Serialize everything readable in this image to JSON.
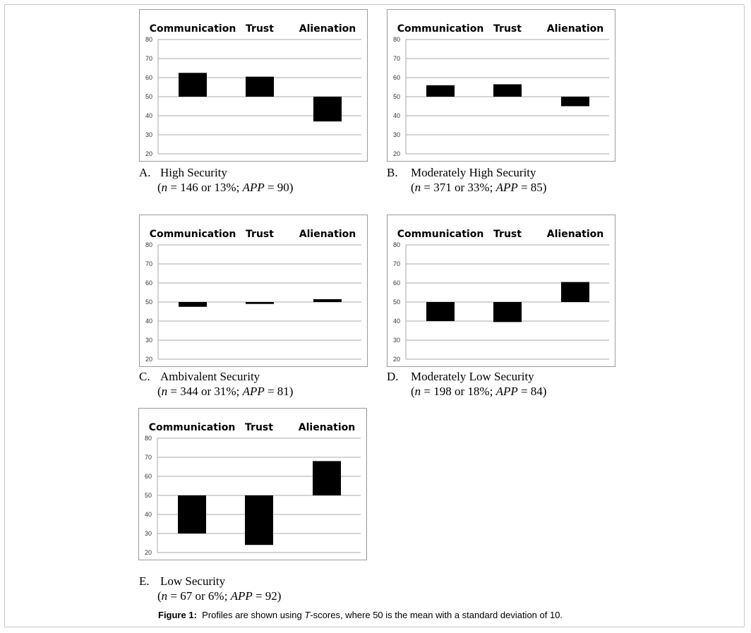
{
  "figure": {
    "label": "Figure 1:",
    "caption_pre": "Profiles are shown using ",
    "caption_em": "T",
    "caption_post": "-scores, where 50 is the mean with a standard deviation of 10."
  },
  "panels": [
    {
      "letter": "A.",
      "title": "High Security",
      "n_pre": "(",
      "n_sym": "n",
      "n_mid": " = 146 or 13%; ",
      "app_sym": "APP",
      "app_post": " = 90)"
    },
    {
      "letter": "B.",
      "title": "Moderately High Security",
      "n_pre": "(",
      "n_sym": "n",
      "n_mid": " = 371 or 33%; ",
      "app_sym": "APP",
      "app_post": " = 85)"
    },
    {
      "letter": "C.",
      "title": "Ambivalent Security",
      "n_pre": "(",
      "n_sym": "n",
      "n_mid": " = 344 or 31%; ",
      "app_sym": "APP",
      "app_post": " = 81)"
    },
    {
      "letter": "D.",
      "title": "Moderately Low Security",
      "n_pre": "(",
      "n_sym": "n",
      "n_mid": " = 198 or 18%; ",
      "app_sym": "APP",
      "app_post": " = 84)"
    },
    {
      "letter": "E.",
      "title": "Low Security",
      "n_pre": "(",
      "n_sym": "n",
      "n_mid": " = 67 or 6%; ",
      "app_sym": "APP",
      "app_post": " = 92)"
    }
  ],
  "chart_data": [
    {
      "type": "bar",
      "categories": [
        "Communication",
        "Trust",
        "Alienation"
      ],
      "baseline": 50,
      "values": [
        62.5,
        60.5,
        37
      ],
      "ylim": [
        20,
        80
      ],
      "yticks": [
        20,
        30,
        40,
        50,
        60,
        70,
        80
      ],
      "grid": true,
      "bar_color": "#000000"
    },
    {
      "type": "bar",
      "categories": [
        "Communication",
        "Trust",
        "Alienation"
      ],
      "baseline": 50,
      "values": [
        56,
        56.5,
        45
      ],
      "ylim": [
        20,
        80
      ],
      "yticks": [
        20,
        30,
        40,
        50,
        60,
        70,
        80
      ],
      "grid": true,
      "bar_color": "#000000"
    },
    {
      "type": "bar",
      "categories": [
        "Communication",
        "Trust",
        "Alienation"
      ],
      "baseline": 50,
      "values": [
        47.5,
        49,
        51.5
      ],
      "ylim": [
        20,
        80
      ],
      "yticks": [
        20,
        30,
        40,
        50,
        60,
        70,
        80
      ],
      "grid": true,
      "bar_color": "#000000"
    },
    {
      "type": "bar",
      "categories": [
        "Communication",
        "Trust",
        "Alienation"
      ],
      "baseline": 50,
      "values": [
        40,
        39.5,
        60.5
      ],
      "ylim": [
        20,
        80
      ],
      "yticks": [
        20,
        30,
        40,
        50,
        60,
        70,
        80
      ],
      "grid": true,
      "bar_color": "#000000"
    },
    {
      "type": "bar",
      "categories": [
        "Communication",
        "Trust",
        "Alienation"
      ],
      "baseline": 50,
      "values": [
        30,
        24,
        68
      ],
      "ylim": [
        20,
        80
      ],
      "yticks": [
        20,
        30,
        40,
        50,
        60,
        70,
        80
      ],
      "grid": true,
      "bar_color": "#000000"
    }
  ]
}
